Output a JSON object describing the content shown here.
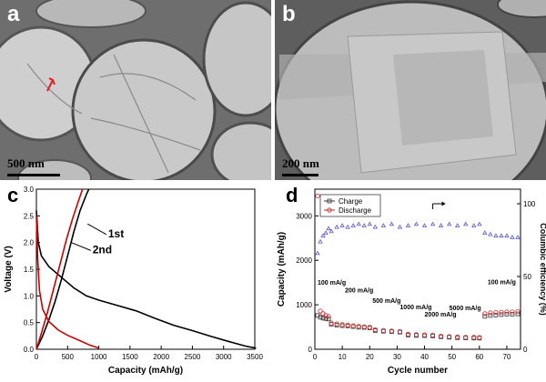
{
  "panels": {
    "a": {
      "letter": "a",
      "scale_label": "500 nm"
    },
    "b": {
      "letter": "b",
      "scale_label": "200 nm"
    }
  },
  "chart_data": [
    {
      "panel": "c",
      "type": "line",
      "xlabel": "Capacity (mAh/g)",
      "ylabel": "Voltage (V)",
      "xlim": [
        0,
        3500
      ],
      "ylim": [
        0,
        3.0
      ],
      "xticks": [
        0,
        500,
        1000,
        1500,
        2000,
        2500,
        3000,
        3500
      ],
      "yticks": [
        0.0,
        0.5,
        1.0,
        1.5,
        2.0,
        2.5,
        3.0
      ],
      "annotations": [
        "1st",
        "2nd"
      ],
      "series": [
        {
          "name": "1st",
          "color": "#000000",
          "discharge": [
            [
              0,
              2.6
            ],
            [
              30,
              2.0
            ],
            [
              80,
              1.75
            ],
            [
              200,
              1.55
            ],
            [
              400,
              1.35
            ],
            [
              600,
              1.15
            ],
            [
              800,
              1.0
            ],
            [
              1000,
              0.92
            ],
            [
              1300,
              0.82
            ],
            [
              1600,
              0.72
            ],
            [
              1900,
              0.58
            ],
            [
              2200,
              0.45
            ],
            [
              2500,
              0.35
            ],
            [
              2800,
              0.24
            ],
            [
              3100,
              0.14
            ],
            [
              3350,
              0.06
            ],
            [
              3520,
              0.02
            ]
          ],
          "charge": [
            [
              0,
              0.0
            ],
            [
              100,
              0.25
            ],
            [
              200,
              0.55
            ],
            [
              300,
              0.9
            ],
            [
              400,
              1.3
            ],
            [
              500,
              1.75
            ],
            [
              600,
              2.2
            ],
            [
              700,
              2.6
            ],
            [
              800,
              2.9
            ],
            [
              840,
              3.0
            ]
          ]
        },
        {
          "name": "2nd",
          "color": "#cc0000",
          "discharge": [
            [
              0,
              2.5
            ],
            [
              20,
              1.7
            ],
            [
              50,
              1.1
            ],
            [
              100,
              0.75
            ],
            [
              200,
              0.52
            ],
            [
              350,
              0.36
            ],
            [
              500,
              0.26
            ],
            [
              700,
              0.16
            ],
            [
              850,
              0.08
            ],
            [
              1000,
              0.02
            ]
          ],
          "charge": [
            [
              0,
              0.0
            ],
            [
              80,
              0.3
            ],
            [
              180,
              0.7
            ],
            [
              280,
              1.15
            ],
            [
              380,
              1.6
            ],
            [
              480,
              2.05
            ],
            [
              580,
              2.45
            ],
            [
              680,
              2.8
            ],
            [
              740,
              3.0
            ]
          ]
        }
      ]
    },
    {
      "panel": "d",
      "type": "scatter",
      "xlabel": "Cycle number",
      "ylabel": "Capacity (mAh/g)",
      "y2label": "Columbic efficiency (%)",
      "xlim": [
        0,
        75
      ],
      "ylim": [
        0,
        3600
      ],
      "y2lim": [
        0,
        110
      ],
      "xticks": [
        0,
        10,
        20,
        30,
        40,
        50,
        60,
        70
      ],
      "yticks": [
        0,
        1000,
        2000,
        3000
      ],
      "y2ticks": [
        0,
        50,
        100
      ],
      "legend": {
        "position": "top-left",
        "entries": [
          "Charge",
          "Discharge"
        ]
      },
      "rate_labels": [
        "100 mA/g",
        "200 mA/g",
        "500 mA/g",
        "1000 mA/g",
        "2000 mA/g",
        "5000 mA/g",
        "100 mA/g"
      ],
      "series": [
        {
          "name": "Charge",
          "color": "#333333",
          "values": [
            [
              1,
              760
            ],
            [
              2,
              720
            ],
            [
              3,
              700
            ],
            [
              4,
              690
            ],
            [
              5,
              680
            ],
            [
              6,
              560
            ],
            [
              8,
              540
            ],
            [
              10,
              530
            ],
            [
              12,
              525
            ],
            [
              14,
              510
            ],
            [
              16,
              495
            ],
            [
              18,
              490
            ],
            [
              20,
              480
            ],
            [
              22,
              420
            ],
            [
              25,
              405
            ],
            [
              28,
              395
            ],
            [
              31,
              385
            ],
            [
              34,
              320
            ],
            [
              37,
              310
            ],
            [
              40,
              305
            ],
            [
              43,
              300
            ],
            [
              46,
              280
            ],
            [
              49,
              270
            ],
            [
              52,
              260
            ],
            [
              55,
              255
            ],
            [
              58,
              250
            ],
            [
              60,
              250
            ],
            [
              62,
              740
            ],
            [
              64,
              760
            ],
            [
              66,
              770
            ],
            [
              68,
              780
            ],
            [
              70,
              790
            ],
            [
              72,
              790
            ],
            [
              74,
              795
            ]
          ]
        },
        {
          "name": "Discharge",
          "color": "#cc2222",
          "values": [
            [
              1,
              3450
            ],
            [
              2,
              860
            ],
            [
              3,
              800
            ],
            [
              4,
              760
            ],
            [
              5,
              740
            ],
            [
              6,
              590
            ],
            [
              8,
              570
            ],
            [
              10,
              555
            ],
            [
              12,
              545
            ],
            [
              14,
              530
            ],
            [
              16,
              515
            ],
            [
              18,
              505
            ],
            [
              20,
              495
            ],
            [
              22,
              440
            ],
            [
              25,
              425
            ],
            [
              28,
              410
            ],
            [
              31,
              400
            ],
            [
              34,
              340
            ],
            [
              37,
              330
            ],
            [
              40,
              325
            ],
            [
              43,
              320
            ],
            [
              46,
              295
            ],
            [
              49,
              285
            ],
            [
              52,
              278
            ],
            [
              55,
              270
            ],
            [
              58,
              268
            ],
            [
              60,
              265
            ],
            [
              62,
              800
            ],
            [
              64,
              820
            ],
            [
              66,
              830
            ],
            [
              68,
              835
            ],
            [
              70,
              840
            ],
            [
              72,
              840
            ],
            [
              74,
              845
            ]
          ]
        },
        {
          "name": "Columbic efficiency",
          "color": "#5555cc",
          "axis": "y2",
          "values": [
            [
              1,
              66
            ],
            [
              2,
              74
            ],
            [
              3,
              78
            ],
            [
              4,
              80
            ],
            [
              5,
              83
            ],
            [
              6,
              81
            ],
            [
              8,
              84
            ],
            [
              10,
              85
            ],
            [
              12,
              84
            ],
            [
              14,
              85
            ],
            [
              16,
              86
            ],
            [
              18,
              85
            ],
            [
              20,
              86
            ],
            [
              22,
              84
            ],
            [
              25,
              85
            ],
            [
              28,
              86
            ],
            [
              31,
              84
            ],
            [
              34,
              85
            ],
            [
              37,
              86
            ],
            [
              40,
              85
            ],
            [
              43,
              86
            ],
            [
              46,
              85
            ],
            [
              49,
              86
            ],
            [
              52,
              85
            ],
            [
              55,
              86
            ],
            [
              58,
              85
            ],
            [
              60,
              86
            ],
            [
              62,
              80
            ],
            [
              64,
              79
            ],
            [
              66,
              78
            ],
            [
              68,
              78
            ],
            [
              70,
              78
            ],
            [
              72,
              77
            ],
            [
              74,
              77
            ]
          ]
        }
      ]
    }
  ]
}
